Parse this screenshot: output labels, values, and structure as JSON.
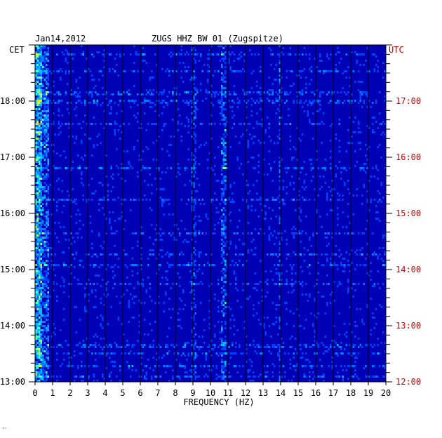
{
  "chart_data": {
    "type": "heatmap",
    "date": "Jan14,2012",
    "title": "ZUGS HHZ BW 01 (Zugspitze)",
    "xlabel": "FREQUENCY (HZ)",
    "left_zone": "CET",
    "right_zone": "UTC",
    "xlim": [
      0,
      20
    ],
    "x_ticks": [
      "0",
      "1",
      "2",
      "3",
      "4",
      "5",
      "6",
      "7",
      "8",
      "9",
      "10",
      "11",
      "12",
      "13",
      "14",
      "15",
      "16",
      "17",
      "18",
      "19",
      "20"
    ],
    "left_ticks": [
      "18:00",
      "17:00",
      "16:00",
      "15:00",
      "14:00",
      "13:00"
    ],
    "right_ticks": [
      "17:00",
      "16:00",
      "15:00",
      "14:00",
      "13:00",
      "12:00"
    ],
    "time_range_cet": [
      "13:00",
      "19:00"
    ],
    "colors": {
      "background": "#0000b4",
      "axis_text": "#000000",
      "utc_text": "#cc0000",
      "grid": "#000000"
    }
  },
  "corner_mark": "ᵢᵣ"
}
